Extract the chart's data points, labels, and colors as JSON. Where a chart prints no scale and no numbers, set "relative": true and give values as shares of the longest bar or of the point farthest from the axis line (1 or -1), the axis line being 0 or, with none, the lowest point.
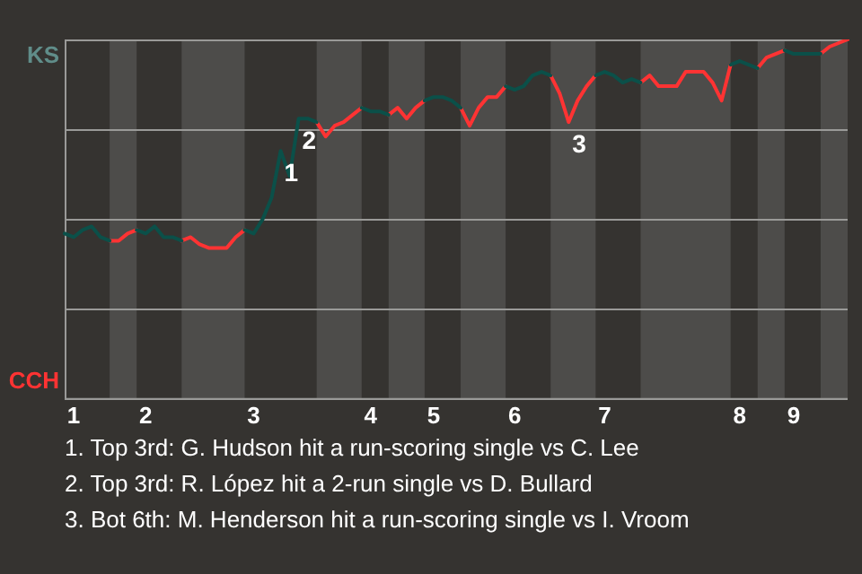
{
  "chart_data": {
    "type": "line",
    "relative": true,
    "categories": [
      null,
      "1",
      null,
      null,
      null,
      null,
      null,
      null,
      null,
      "2",
      null,
      null,
      null,
      null,
      null,
      null,
      null,
      null,
      null,
      null,
      null,
      "3",
      null,
      null,
      null,
      null,
      null,
      null,
      null,
      null,
      null,
      null,
      null,
      null,
      "4",
      null,
      null,
      null,
      null,
      null,
      null,
      "5",
      null,
      null,
      null,
      null,
      null,
      null,
      null,
      null,
      "6",
      null,
      null,
      null,
      null,
      null,
      null,
      null,
      null,
      null,
      "7",
      null,
      null,
      null,
      null,
      null,
      null,
      null,
      null,
      null,
      null,
      null,
      null,
      null,
      null,
      "8",
      null,
      null,
      null,
      null,
      null,
      "9",
      null,
      null,
      null,
      null,
      null,
      null
    ],
    "series": [
      {
        "color": "#0b5049",
        "values": [
          0.46,
          0.45,
          0.47,
          0.48,
          0.45,
          0.44,
          null,
          null,
          0.47,
          0.46,
          0.48,
          0.45,
          0.45,
          0.44,
          null,
          null,
          null,
          null,
          null,
          null,
          0.47,
          0.46,
          0.5,
          0.56,
          0.69,
          0.62,
          0.78,
          0.78,
          0.77,
          null,
          null,
          null,
          null,
          0.81,
          0.8,
          0.8,
          0.79,
          null,
          null,
          null,
          0.83,
          0.84,
          0.84,
          0.83,
          0.81,
          null,
          null,
          null,
          null,
          0.87,
          0.86,
          0.87,
          0.9,
          0.91,
          0.9,
          null,
          null,
          null,
          null,
          0.9,
          0.91,
          0.9,
          0.88,
          0.89,
          0.88,
          null,
          null,
          null,
          null,
          null,
          null,
          null,
          null,
          null,
          0.93,
          0.94,
          0.93,
          0.92,
          null,
          null,
          0.97,
          0.96,
          0.96,
          0.96,
          0.96,
          null,
          null,
          null
        ]
      },
      {
        "color": "#ff3333",
        "values": [
          null,
          null,
          null,
          null,
          null,
          0.44,
          0.44,
          0.46,
          0.47,
          null,
          null,
          null,
          null,
          0.44,
          0.45,
          0.43,
          0.42,
          0.42,
          0.42,
          0.45,
          0.47,
          null,
          null,
          null,
          null,
          null,
          null,
          null,
          0.77,
          0.73,
          0.76,
          0.77,
          0.79,
          0.81,
          null,
          null,
          0.79,
          0.81,
          0.78,
          0.81,
          0.83,
          null,
          null,
          null,
          0.81,
          0.76,
          0.81,
          0.84,
          0.84,
          0.87,
          null,
          null,
          null,
          null,
          0.9,
          0.85,
          0.77,
          0.83,
          0.87,
          0.9,
          null,
          null,
          null,
          null,
          0.88,
          0.9,
          0.87,
          0.87,
          0.87,
          0.91,
          0.91,
          0.91,
          0.88,
          0.83,
          0.93,
          null,
          null,
          0.92,
          0.95,
          0.96,
          0.97,
          null,
          null,
          null,
          0.96,
          0.98,
          0.99,
          1
        ]
      }
    ],
    "annotations": [
      "KS",
      "CCH",
      {
        "text": "1",
        "y": 0.69
      },
      {
        "text": "2",
        "y": 0.78
      },
      {
        "text": "3",
        "y": 0.77
      },
      "1. Top 3rd: G. Hudson hit a run-scoring single vs C. Lee",
      "2. Top 3rd: R. López hit a 2-run single vs D. Bullard",
      "3. Bot 6th: M. Henderson hit a run-scoring single vs I. Vroom"
    ],
    "grid": "y",
    "legend": false,
    "marker": "none",
    "line_style": "solid"
  }
}
